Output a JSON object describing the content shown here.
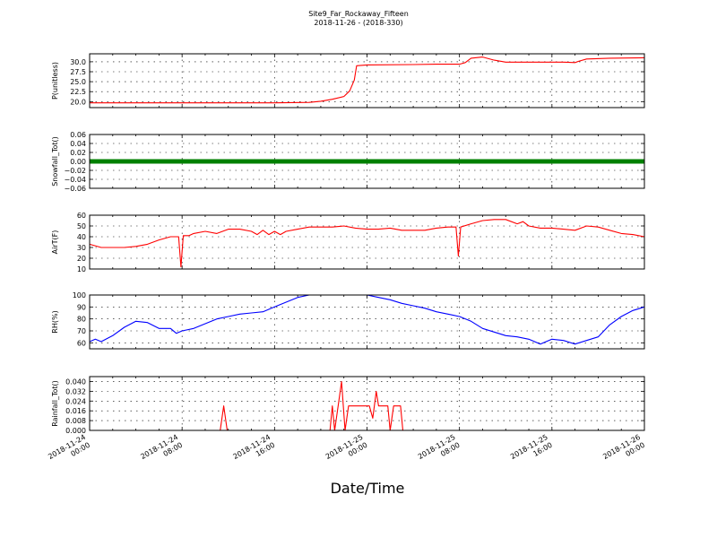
{
  "chart_data": {
    "type": "line",
    "title": "Site9_Far_Rockaway_Fifteen",
    "subtitle": "2018-11-26 - (2018-330)",
    "xlabel": "Date/Time",
    "x_range": [
      "2018-11-24 00:00",
      "2018-11-26 00:00"
    ],
    "x_ticks": [
      [
        "2018-11-24",
        "00:00"
      ],
      [
        "2018-11-24",
        "08:00"
      ],
      [
        "2018-11-24",
        "16:00"
      ],
      [
        "2018-11-25",
        "00:00"
      ],
      [
        "2018-11-25",
        "08:00"
      ],
      [
        "2018-11-25",
        "16:00"
      ],
      [
        "2018-11-26",
        "00:00"
      ]
    ],
    "grid": true,
    "panels": [
      {
        "ylabel": "P(unitless)",
        "color": "#ff0000",
        "ylim": [
          18.5,
          32
        ],
        "yticks": [
          "20.0",
          "22.5",
          "25.0",
          "27.5",
          "30.0"
        ],
        "ytick_values": [
          20.0,
          22.5,
          25.0,
          27.5,
          30.0
        ],
        "points": [
          [
            0,
            19.7
          ],
          [
            4,
            19.7
          ],
          [
            8,
            19.7
          ],
          [
            12,
            19.7
          ],
          [
            16,
            19.7
          ],
          [
            19,
            19.8
          ],
          [
            20,
            20.1
          ],
          [
            21,
            20.6
          ],
          [
            22,
            21.3
          ],
          [
            22.5,
            22.7
          ],
          [
            22.9,
            25.4
          ],
          [
            23.1,
            29.0
          ],
          [
            24,
            29.2
          ],
          [
            28,
            29.3
          ],
          [
            30,
            29.4
          ],
          [
            32,
            29.4
          ],
          [
            32.5,
            29.8
          ],
          [
            33,
            30.9
          ],
          [
            34,
            31.2
          ],
          [
            35,
            30.4
          ],
          [
            36,
            29.9
          ],
          [
            40,
            29.9
          ],
          [
            41,
            29.9
          ],
          [
            42,
            29.8
          ],
          [
            42.3,
            30.1
          ],
          [
            43,
            30.7
          ],
          [
            45,
            30.9
          ],
          [
            48,
            31.0
          ]
        ]
      },
      {
        "ylabel": "Snowfall_Tot()",
        "color": "#008000",
        "ylim": [
          -0.06,
          0.06
        ],
        "yticks": [
          "−0.06",
          "−0.04",
          "−0.02",
          "0.00",
          "0.02",
          "0.04",
          "0.06"
        ],
        "ytick_values": [
          -0.06,
          -0.04,
          -0.02,
          0.0,
          0.02,
          0.04,
          0.06
        ],
        "points": [
          [
            0,
            0
          ],
          [
            48,
            0
          ]
        ]
      },
      {
        "ylabel": "AirT(F)",
        "color": "#ff0000",
        "ylim": [
          10,
          60
        ],
        "yticks": [
          "10",
          "20",
          "30",
          "40",
          "50",
          "60"
        ],
        "ytick_values": [
          10,
          20,
          30,
          40,
          50,
          60
        ],
        "points": [
          [
            0,
            33
          ],
          [
            1,
            30
          ],
          [
            2,
            30
          ],
          [
            3,
            30
          ],
          [
            4,
            31
          ],
          [
            5,
            33
          ],
          [
            6,
            37
          ],
          [
            7,
            40
          ],
          [
            7.7,
            40
          ],
          [
            7.9,
            12
          ],
          [
            8.1,
            41
          ],
          [
            8.6,
            41
          ],
          [
            9,
            43
          ],
          [
            10,
            45
          ],
          [
            11,
            43
          ],
          [
            12,
            47
          ],
          [
            13,
            47
          ],
          [
            14,
            45
          ],
          [
            14.5,
            42
          ],
          [
            15,
            46
          ],
          [
            15.5,
            42
          ],
          [
            16,
            45
          ],
          [
            16.5,
            42
          ],
          [
            17,
            45
          ],
          [
            18,
            47
          ],
          [
            19,
            49
          ],
          [
            20,
            49
          ],
          [
            21,
            49
          ],
          [
            22,
            50
          ],
          [
            23,
            48
          ],
          [
            24,
            47
          ],
          [
            25,
            47
          ],
          [
            26,
            48
          ],
          [
            27,
            46
          ],
          [
            28,
            46
          ],
          [
            29,
            46
          ],
          [
            30,
            48
          ],
          [
            31,
            49
          ],
          [
            31.7,
            49
          ],
          [
            31.9,
            22
          ],
          [
            32.1,
            49
          ],
          [
            33,
            52
          ],
          [
            34,
            55
          ],
          [
            35,
            56
          ],
          [
            36,
            56
          ],
          [
            37,
            52
          ],
          [
            37.5,
            54
          ],
          [
            38,
            50
          ],
          [
            39,
            48
          ],
          [
            40,
            48
          ],
          [
            41,
            47
          ],
          [
            42,
            46
          ],
          [
            43,
            50
          ],
          [
            44,
            49
          ],
          [
            45,
            46
          ],
          [
            46,
            43
          ],
          [
            47,
            42
          ],
          [
            48,
            40
          ]
        ]
      },
      {
        "ylabel": "RH(%)",
        "color": "#0000ff",
        "ylim": [
          55,
          100
        ],
        "yticks": [
          "60",
          "70",
          "80",
          "90",
          "100"
        ],
        "ytick_values": [
          60,
          70,
          80,
          90,
          100
        ],
        "points": [
          [
            0,
            61
          ],
          [
            0.5,
            63
          ],
          [
            1,
            61
          ],
          [
            2,
            66
          ],
          [
            3,
            73
          ],
          [
            4,
            78
          ],
          [
            5,
            77
          ],
          [
            6,
            72
          ],
          [
            7,
            72
          ],
          [
            7.5,
            68
          ],
          [
            8,
            70
          ],
          [
            9,
            72
          ],
          [
            10,
            76
          ],
          [
            11,
            80
          ],
          [
            12,
            82
          ],
          [
            13,
            84
          ],
          [
            14,
            85
          ],
          [
            15,
            86
          ],
          [
            16,
            90
          ],
          [
            17,
            94
          ],
          [
            18,
            98
          ],
          [
            19,
            100
          ],
          [
            20,
            100
          ],
          [
            21,
            100
          ],
          [
            22,
            100
          ],
          [
            23,
            100
          ],
          [
            24,
            100
          ],
          [
            25,
            98
          ],
          [
            26,
            96
          ],
          [
            27,
            93
          ],
          [
            28,
            91
          ],
          [
            29,
            89
          ],
          [
            30,
            86
          ],
          [
            31,
            84
          ],
          [
            32,
            82
          ],
          [
            33,
            78
          ],
          [
            34,
            72
          ],
          [
            35,
            69
          ],
          [
            36,
            66
          ],
          [
            37,
            65
          ],
          [
            38,
            63
          ],
          [
            39,
            59
          ],
          [
            40,
            63
          ],
          [
            41,
            62
          ],
          [
            42,
            59
          ],
          [
            43,
            62
          ],
          [
            44,
            65
          ],
          [
            45,
            75
          ],
          [
            46,
            82
          ],
          [
            47,
            87
          ],
          [
            48,
            90
          ]
        ]
      },
      {
        "ylabel": "Rainfall_Tot()",
        "color": "#ff0000",
        "ylim": [
          0,
          0.044
        ],
        "yticks": [
          "0.000",
          "0.008",
          "0.016",
          "0.024",
          "0.032",
          "0.040"
        ],
        "ytick_values": [
          0.0,
          0.008,
          0.016,
          0.024,
          0.032,
          0.04
        ],
        "points": [
          [
            0,
            0
          ],
          [
            11.3,
            0
          ],
          [
            11.6,
            0.02
          ],
          [
            11.9,
            0
          ],
          [
            20.8,
            0
          ],
          [
            21,
            0.02
          ],
          [
            21.2,
            0
          ],
          [
            21.5,
            0.02
          ],
          [
            21.8,
            0.04
          ],
          [
            22.1,
            0
          ],
          [
            22.4,
            0.02
          ],
          [
            22.7,
            0.02
          ],
          [
            23,
            0.02
          ],
          [
            23.3,
            0.02
          ],
          [
            23.6,
            0.02
          ],
          [
            23.8,
            0.02
          ],
          [
            24,
            0.02
          ],
          [
            24.2,
            0.02
          ],
          [
            24.5,
            0.01
          ],
          [
            24.8,
            0.032
          ],
          [
            25,
            0.02
          ],
          [
            25.3,
            0.02
          ],
          [
            25.6,
            0.02
          ],
          [
            25.8,
            0.02
          ],
          [
            26,
            0
          ],
          [
            26.3,
            0.02
          ],
          [
            26.6,
            0.02
          ],
          [
            26.9,
            0.02
          ],
          [
            27.1,
            0
          ],
          [
            48,
            0
          ]
        ]
      }
    ]
  }
}
